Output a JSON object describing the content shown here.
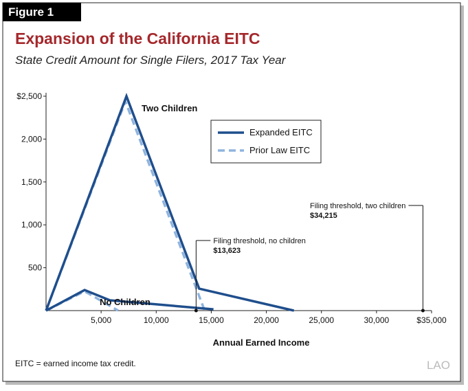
{
  "figure_label": "Figure 1",
  "chart_data": {
    "type": "line",
    "title": "Expansion of the California EITC",
    "subtitle": "State Credit Amount for Single Filers, 2017 Tax Year",
    "xlabel": "Annual Earned Income",
    "xlim": [
      0,
      35000
    ],
    "xticks": [
      {
        "value": 5000,
        "label": "5,000"
      },
      {
        "value": 10000,
        "label": "10,000"
      },
      {
        "value": 15000,
        "label": "15,000"
      },
      {
        "value": 20000,
        "label": "20,000"
      },
      {
        "value": 25000,
        "label": "25,000"
      },
      {
        "value": 30000,
        "label": "30,000"
      },
      {
        "value": 35000,
        "label": "$35,000"
      }
    ],
    "ylim": [
      0,
      2500
    ],
    "yticks": [
      {
        "value": 500,
        "label": "500"
      },
      {
        "value": 1000,
        "label": "1,000"
      },
      {
        "value": 1500,
        "label": "1,500"
      },
      {
        "value": 2000,
        "label": "2,000"
      },
      {
        "value": 2500,
        "label": "$2,500"
      }
    ],
    "grid": false,
    "series": [
      {
        "name": "Expanded EITC",
        "color": "#1f4e8c",
        "dashed": false,
        "lines": [
          {
            "label": "Two Children",
            "x": [
              0,
              7300,
              13900,
              22500
            ],
            "values": [
              0,
              2500,
              256,
              0
            ]
          },
          {
            "label": "No Children",
            "x": [
              0,
              3500,
              5800,
              15200
            ],
            "values": [
              0,
              240,
              120,
              15
            ]
          }
        ]
      },
      {
        "name": "Prior Law EITC",
        "color": "#8fb4de",
        "dashed": true,
        "lines": [
          {
            "x": [
              0,
              7200,
              14400
            ],
            "values": [
              0,
              2440,
              0
            ]
          },
          {
            "x": [
              0,
              3500,
              6550
            ],
            "values": [
              0,
              225,
              0
            ]
          }
        ]
      }
    ],
    "annotations": [
      {
        "text": "Filing threshold, no children",
        "value_label": "$13,623",
        "x": 13623
      },
      {
        "text": "Filing threshold, two children",
        "value_label": "$34,215",
        "x": 34215
      }
    ]
  },
  "footnote": "EITC = earned income tax credit.",
  "logo": "LAO"
}
